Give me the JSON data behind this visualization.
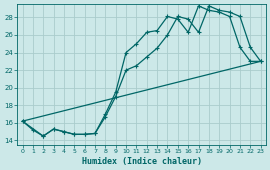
{
  "title": "",
  "xlabel": "Humidex (Indice chaleur)",
  "bg_color": "#cce8e8",
  "grid_color": "#aacccc",
  "line_color": "#006666",
  "xlim": [
    -0.5,
    23.5
  ],
  "ylim": [
    13.5,
    29.5
  ],
  "yticks": [
    14,
    16,
    18,
    20,
    22,
    24,
    26,
    28
  ],
  "xticks": [
    0,
    1,
    2,
    3,
    4,
    5,
    6,
    7,
    8,
    9,
    10,
    11,
    12,
    13,
    14,
    15,
    16,
    17,
    18,
    19,
    20,
    21,
    22,
    23
  ],
  "line1_x": [
    0,
    1,
    2,
    3,
    4,
    5,
    6,
    7,
    8,
    9,
    10,
    11,
    12,
    13,
    14,
    15,
    16,
    17,
    18,
    19,
    20,
    21,
    22,
    23
  ],
  "line1_y": [
    16.2,
    15.2,
    14.5,
    15.3,
    15.0,
    14.7,
    14.7,
    14.8,
    17.0,
    19.5,
    24.0,
    25.0,
    26.3,
    26.5,
    28.1,
    27.8,
    26.3,
    29.3,
    28.8,
    28.6,
    28.1,
    24.6,
    23.0,
    23.0
  ],
  "line2_x": [
    0,
    2,
    3,
    4,
    5,
    6,
    7,
    8,
    9,
    10,
    11,
    12,
    13,
    14,
    15,
    16,
    17,
    18,
    19,
    20,
    21,
    22,
    23
  ],
  "line2_y": [
    16.2,
    14.5,
    15.3,
    15.0,
    14.7,
    14.7,
    14.8,
    16.7,
    19.0,
    22.0,
    22.5,
    23.5,
    24.5,
    26.0,
    28.1,
    27.8,
    26.3,
    29.3,
    28.8,
    28.6,
    28.1,
    24.6,
    23.0
  ],
  "line3_x": [
    0,
    23
  ],
  "line3_y": [
    16.2,
    23.0
  ]
}
